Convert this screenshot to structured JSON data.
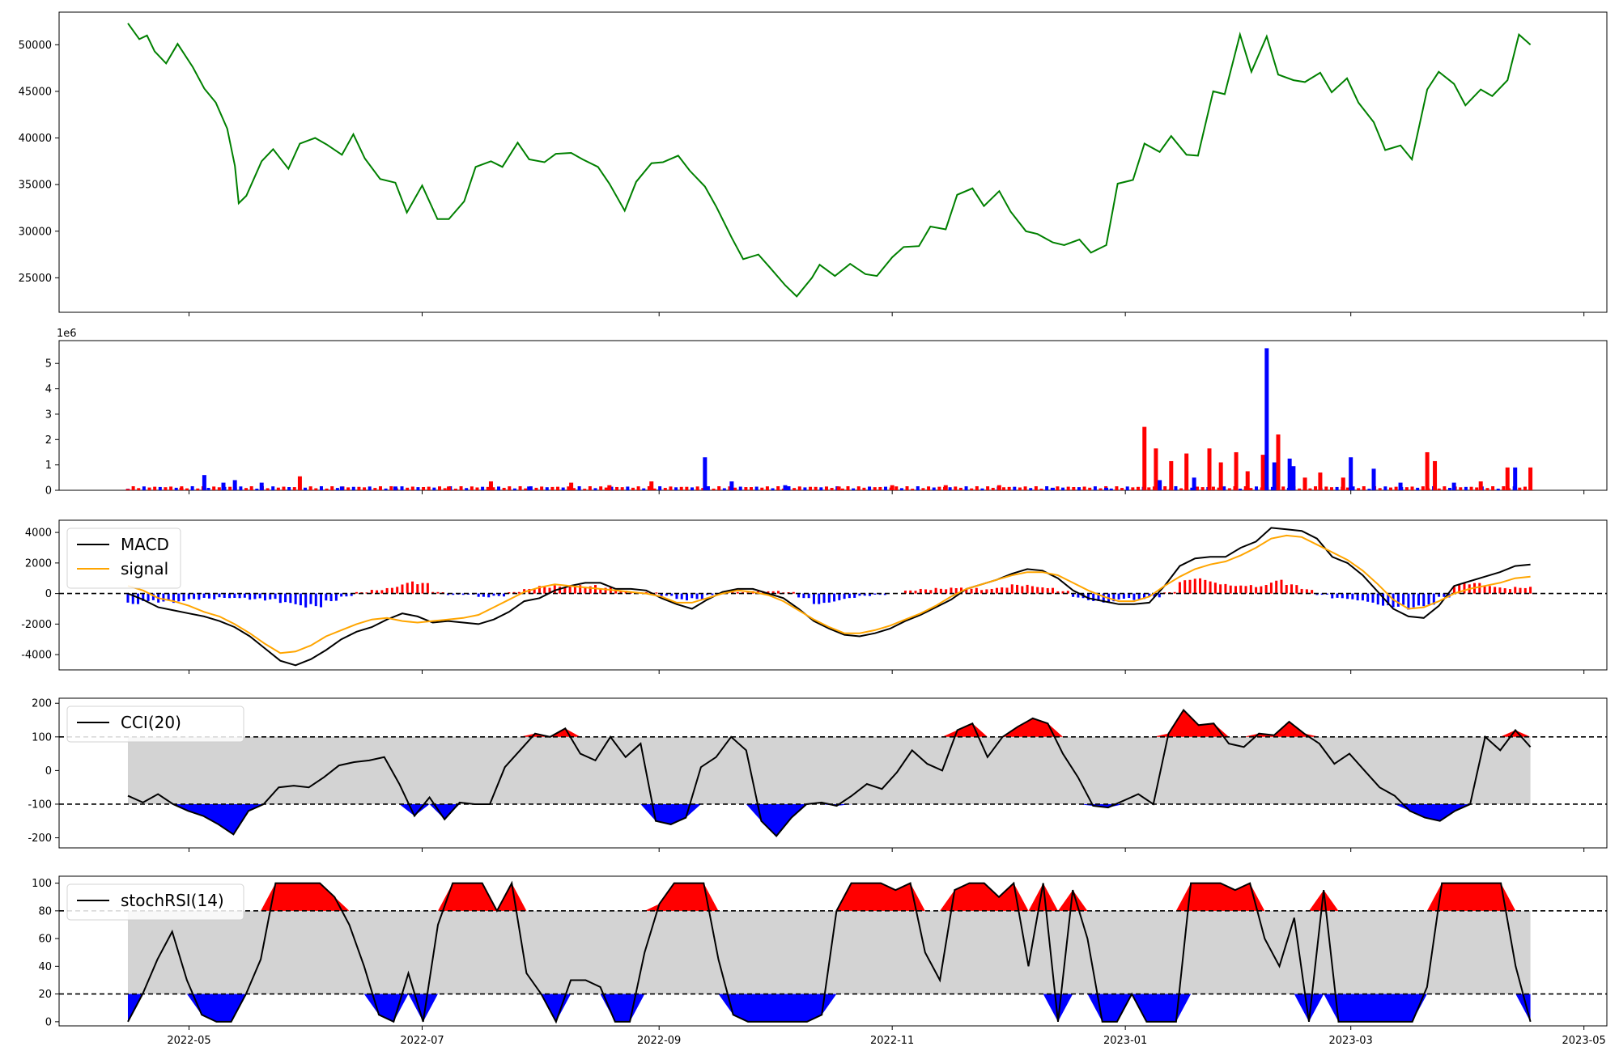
{
  "chart_data": [
    {
      "type": "line",
      "title": "",
      "xlabel": "",
      "ylabel": "",
      "xlim": [
        "2022-03-28",
        "2023-05-07"
      ],
      "ylim": [
        21300,
        53500
      ],
      "y_ticks": [
        25000,
        30000,
        35000,
        40000,
        45000,
        50000
      ],
      "grid": false,
      "color": "#008000",
      "x": [
        "2022-04-15",
        "2022-04-18",
        "2022-04-20",
        "2022-04-22",
        "2022-04-25",
        "2022-04-28",
        "2022-05-02",
        "2022-05-05",
        "2022-05-08",
        "2022-05-11",
        "2022-05-13",
        "2022-05-14",
        "2022-05-16",
        "2022-05-20",
        "2022-05-23",
        "2022-05-27",
        "2022-05-30",
        "2022-06-03",
        "2022-06-06",
        "2022-06-10",
        "2022-06-13",
        "2022-06-16",
        "2022-06-20",
        "2022-06-24",
        "2022-06-27",
        "2022-07-01",
        "2022-07-05",
        "2022-07-08",
        "2022-07-12",
        "2022-07-15",
        "2022-07-19",
        "2022-07-22",
        "2022-07-26",
        "2022-07-29",
        "2022-08-02",
        "2022-08-05",
        "2022-08-09",
        "2022-08-12",
        "2022-08-16",
        "2022-08-19",
        "2022-08-23",
        "2022-08-26",
        "2022-08-30",
        "2022-09-02",
        "2022-09-06",
        "2022-09-09",
        "2022-09-13",
        "2022-09-16",
        "2022-09-20",
        "2022-09-23",
        "2022-09-27",
        "2022-09-30",
        "2022-10-04",
        "2022-10-07",
        "2022-10-11",
        "2022-10-13",
        "2022-10-17",
        "2022-10-21",
        "2022-10-25",
        "2022-10-28",
        "2022-11-01",
        "2022-11-04",
        "2022-11-08",
        "2022-11-11",
        "2022-11-15",
        "2022-11-18",
        "2022-11-22",
        "2022-11-25",
        "2022-11-29",
        "2022-12-02",
        "2022-12-06",
        "2022-12-09",
        "2022-12-13",
        "2022-12-16",
        "2022-12-20",
        "2022-12-23",
        "2022-12-27",
        "2022-12-30",
        "2023-01-03",
        "2023-01-06",
        "2023-01-10",
        "2023-01-13",
        "2023-01-17",
        "2023-01-20",
        "2023-01-24",
        "2023-01-27",
        "2023-01-31",
        "2023-02-03",
        "2023-02-07",
        "2023-02-10",
        "2023-02-14",
        "2023-02-17",
        "2023-02-21",
        "2023-02-24",
        "2023-02-28",
        "2023-03-03",
        "2023-03-07",
        "2023-03-10",
        "2023-03-14",
        "2023-03-17",
        "2023-03-21",
        "2023-03-24",
        "2023-03-28",
        "2023-03-31",
        "2023-04-04",
        "2023-04-07",
        "2023-04-11",
        "2023-04-14",
        "2023-04-17"
      ],
      "values": [
        52300,
        50600,
        51000,
        49300,
        48000,
        50100,
        47600,
        45300,
        43800,
        41000,
        37000,
        33000,
        33800,
        37500,
        38800,
        36700,
        39400,
        40000,
        39300,
        38200,
        40400,
        37800,
        35600,
        35200,
        32000,
        34900,
        31300,
        31300,
        33200,
        36900,
        37500,
        36900,
        39500,
        37700,
        37400,
        38300,
        38400,
        37700,
        36900,
        35100,
        32200,
        35300,
        37300,
        37400,
        38100,
        36500,
        34800,
        32600,
        29300,
        27000,
        27500,
        26100,
        24200,
        23000,
        25000,
        26400,
        25200,
        26500,
        25400,
        25200,
        27200,
        28300,
        28400,
        30500,
        30200,
        33900,
        34600,
        32700,
        34300,
        32100,
        30000,
        29700,
        28800,
        28500,
        29100,
        27700,
        28500,
        35100,
        35500,
        39400,
        38500,
        40200,
        38200,
        38100,
        45000,
        44700,
        51100,
        47100,
        50900,
        46800,
        46200,
        46000,
        47000,
        44900,
        46400,
        43800,
        41700,
        38700,
        39200,
        37700,
        45200,
        47100,
        45800,
        43500,
        45200,
        44500,
        46200,
        51100,
        50000
      ],
      "volume_scale_label": "1e6"
    },
    {
      "type": "bar",
      "title": "",
      "ylim": [
        0,
        5.9
      ],
      "y_ticks": [
        0,
        1,
        2,
        3,
        4,
        5
      ],
      "up_color": "#ff0000",
      "down_color": "#0000ff",
      "x": [
        "2022-04-15",
        "2022-04-29",
        "2022-05-05",
        "2022-05-10",
        "2022-05-13",
        "2022-05-20",
        "2022-05-30",
        "2022-06-10",
        "2022-06-24",
        "2022-07-08",
        "2022-07-19",
        "2022-07-29",
        "2022-08-09",
        "2022-08-19",
        "2022-08-30",
        "2022-09-13",
        "2022-09-20",
        "2022-10-04",
        "2022-10-18",
        "2022-11-01",
        "2022-11-15",
        "2022-11-29",
        "2022-12-13",
        "2022-12-27",
        "2023-01-06",
        "2023-01-09",
        "2023-01-10",
        "2023-01-13",
        "2023-01-17",
        "2023-01-19",
        "2023-01-23",
        "2023-01-26",
        "2023-01-30",
        "2023-02-02",
        "2023-02-06",
        "2023-02-07",
        "2023-02-09",
        "2023-02-10",
        "2023-02-13",
        "2023-02-14",
        "2023-02-17",
        "2023-02-21",
        "2023-02-27",
        "2023-03-01",
        "2023-03-07",
        "2023-03-14",
        "2023-03-21",
        "2023-03-23",
        "2023-03-28",
        "2023-04-04",
        "2023-04-11",
        "2023-04-13",
        "2023-04-17"
      ],
      "values": [
        0.05,
        0.1,
        0.6,
        0.3,
        0.4,
        0.3,
        0.55,
        0.15,
        0.15,
        0.15,
        0.35,
        0.15,
        0.3,
        0.2,
        0.35,
        1.3,
        0.35,
        0.2,
        0.15,
        0.2,
        0.2,
        0.2,
        0.1,
        0.1,
        2.5,
        1.65,
        0.4,
        1.15,
        1.45,
        0.5,
        1.65,
        1.1,
        1.5,
        0.75,
        1.4,
        5.6,
        1.1,
        2.2,
        1.25,
        0.95,
        0.5,
        0.7,
        0.5,
        1.3,
        0.85,
        0.3,
        1.5,
        1.15,
        0.3,
        0.35,
        0.9,
        0.9,
        0.9
      ],
      "up": [
        true,
        true,
        false,
        false,
        false,
        false,
        true,
        false,
        false,
        true,
        true,
        false,
        true,
        true,
        true,
        false,
        false,
        false,
        true,
        true,
        true,
        true,
        false,
        false,
        true,
        true,
        false,
        true,
        true,
        false,
        true,
        true,
        true,
        true,
        true,
        false,
        false,
        true,
        false,
        false,
        true,
        true,
        true,
        false,
        false,
        false,
        true,
        true,
        false,
        true,
        true,
        false,
        true
      ]
    },
    {
      "type": "line",
      "ylim": [
        -5000,
        4800
      ],
      "y_ticks": [
        -4000,
        -2000,
        0,
        2000,
        4000
      ],
      "series": [
        {
          "name": "MACD",
          "color": "#000000",
          "values": [
            0,
            -400,
            -900,
            -1100,
            -1300,
            -1500,
            -1800,
            -2200,
            -2800,
            -3600,
            -4400,
            -4700,
            -4300,
            -3700,
            -3000,
            -2500,
            -2200,
            -1700,
            -1300,
            -1500,
            -1900,
            -1800,
            -1900,
            -2000,
            -1700,
            -1200,
            -500,
            -300,
            200,
            500,
            700,
            700,
            300,
            300,
            200,
            -300,
            -700,
            -1000,
            -400,
            100,
            300,
            300,
            0,
            -300,
            -1000,
            -1800,
            -2300,
            -2700,
            -2800,
            -2600,
            -2300,
            -1800,
            -1400,
            -900,
            -400,
            300,
            600,
            900,
            1300,
            1600,
            1500,
            1000,
            200,
            -300,
            -500,
            -700,
            -700,
            -600,
            500,
            1800,
            2300,
            2400,
            2400,
            3000,
            3400,
            4300,
            4200,
            4100,
            3600,
            2400,
            2000,
            1200,
            100,
            -1000,
            -1500,
            -1600,
            -800,
            500,
            800,
            1100,
            1400,
            1800,
            1900
          ]
        },
        {
          "name": "signal",
          "color": "#ffa500",
          "values": [
            500,
            200,
            -300,
            -500,
            -800,
            -1200,
            -1500,
            -2000,
            -2600,
            -3300,
            -3900,
            -3800,
            -3400,
            -2800,
            -2400,
            -2000,
            -1700,
            -1600,
            -1800,
            -1900,
            -1800,
            -1700,
            -1600,
            -1400,
            -900,
            -400,
            100,
            400,
            600,
            500,
            400,
            300,
            200,
            100,
            0,
            -200,
            -600,
            -600,
            -300,
            0,
            200,
            100,
            -100,
            -500,
            -1100,
            -1700,
            -2200,
            -2600,
            -2600,
            -2400,
            -2100,
            -1700,
            -1300,
            -800,
            -200,
            300,
            600,
            900,
            1200,
            1400,
            1400,
            1200,
            700,
            200,
            -200,
            -500,
            -500,
            -200,
            500,
            1100,
            1600,
            1900,
            2100,
            2500,
            3000,
            3600,
            3800,
            3700,
            3200,
            2700,
            2200,
            1500,
            600,
            -400,
            -1000,
            -900,
            -500,
            0,
            300,
            500,
            700,
            1000,
            1100
          ]
        }
      ],
      "histogram": [
        -700,
        -500,
        -600,
        -700,
        -500,
        -400,
        -300,
        -300,
        -400,
        -500,
        -800,
        -1000,
        -900,
        -500,
        -200,
        100,
        300,
        500,
        800,
        700,
        100,
        -100,
        -100,
        -300,
        -200,
        100,
        300,
        500,
        600,
        700,
        600,
        400,
        200,
        100,
        100,
        -200,
        -500,
        -400,
        -100,
        100,
        100,
        200,
        200,
        100,
        -300,
        -700,
        -600,
        -400,
        -200,
        -100,
        0,
        200,
        300,
        400,
        500,
        400,
        300,
        400,
        600,
        600,
        500,
        200,
        -300,
        -500,
        -600,
        -400,
        -500,
        -300,
        100,
        900,
        1000,
        800,
        700,
        700,
        600,
        900,
        600,
        300,
        -100,
        -400,
        -500,
        -600,
        -800,
        -900,
        -1100,
        -1000,
        -300,
        700,
        700,
        500,
        400,
        500,
        600
      ]
    },
    {
      "type": "line",
      "ylim": [
        -230,
        215
      ],
      "y_ticks": [
        -200,
        -100,
        0,
        100,
        200
      ],
      "series": [
        {
          "name": "CCI(20)",
          "color": "#000000",
          "values": [
            -75,
            -95,
            -70,
            -100,
            -120,
            -135,
            -160,
            -190,
            -120,
            -100,
            -50,
            -45,
            -50,
            -20,
            15,
            25,
            30,
            40,
            -40,
            -135,
            -80,
            -145,
            -95,
            -100,
            -100,
            10,
            60,
            110,
            100,
            125,
            50,
            30,
            100,
            40,
            80,
            -150,
            -160,
            -140,
            10,
            40,
            100,
            60,
            -150,
            -195,
            -140,
            -100,
            -95,
            -105,
            -75,
            -40,
            -55,
            -5,
            60,
            20,
            0,
            120,
            140,
            40,
            100,
            130,
            155,
            140,
            50,
            -20,
            -105,
            -110,
            -90,
            -70,
            -100,
            110,
            180,
            135,
            140,
            80,
            70,
            110,
            105,
            145,
            110,
            80,
            20,
            50,
            0,
            -50,
            -75,
            -120,
            -140,
            -150,
            -120,
            -100,
            100,
            60,
            120,
            70
          ]
        }
      ],
      "bands": [
        -100,
        100
      ],
      "fill_colors": {
        "neutral": "#d3d3d3",
        "overbought": "#ff0000",
        "oversold": "#0000ff"
      }
    },
    {
      "type": "line",
      "ylim": [
        -3,
        105
      ],
      "y_ticks": [
        0,
        20,
        40,
        60,
        80,
        100
      ],
      "series": [
        {
          "name": "stochRSI(14)",
          "color": "#000000",
          "values": [
            0,
            20,
            45,
            65,
            30,
            5,
            0,
            0,
            20,
            45,
            100,
            100,
            100,
            100,
            90,
            70,
            40,
            5,
            0,
            35,
            0,
            70,
            100,
            100,
            100,
            80,
            100,
            35,
            20,
            0,
            30,
            30,
            25,
            0,
            0,
            50,
            85,
            100,
            100,
            100,
            45,
            5,
            0,
            0,
            0,
            0,
            0,
            5,
            80,
            100,
            100,
            100,
            95,
            100,
            50,
            30,
            95,
            100,
            100,
            90,
            100,
            40,
            100,
            0,
            95,
            60,
            0,
            0,
            20,
            0,
            0,
            0,
            100,
            100,
            100,
            95,
            100,
            60,
            40,
            75,
            0,
            95,
            0,
            0,
            0,
            0,
            0,
            0,
            25,
            100,
            100,
            100,
            100,
            100,
            40,
            0
          ]
        }
      ],
      "bands": [
        20,
        80
      ],
      "fill_colors": {
        "neutral": "#d3d3d3",
        "overbought": "#ff0000",
        "oversold": "#0000ff"
      }
    }
  ],
  "x_axis": {
    "tick_labels": [
      "2022-05",
      "2022-07",
      "2022-09",
      "2022-11",
      "2023-01",
      "2023-03",
      "2023-05"
    ],
    "tick_dates": [
      "2022-05-01",
      "2022-07-01",
      "2022-09-01",
      "2022-11-01",
      "2023-01-01",
      "2023-03-01",
      "2023-05-01"
    ]
  }
}
